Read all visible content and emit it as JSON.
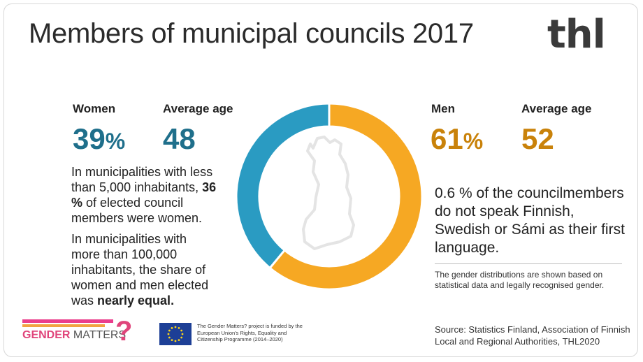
{
  "title": "Members of municipal councils 2017",
  "logo": "thl",
  "women": {
    "label": "Women",
    "value": "39",
    "unit": "%",
    "age_label": "Average age",
    "age": "48"
  },
  "men": {
    "label": "Men",
    "value": "61",
    "unit": "%",
    "age_label": "Average age",
    "age": "52"
  },
  "text": {
    "p1a": "In municipalities with less than 5,000 inhabitants, ",
    "p1b": "36 %",
    "p1c": " of elected council members were women.",
    "p2a": "In municipalities with more than 100,000 inhabitants, the share of women and men elected was ",
    "p2b": "nearly equal.",
    "fact": "0.6 % of the councilmembers do not speak Finnish, Swedish or Sámi as their first language.",
    "note": "The gender distributions are shown based on statistical data and legally recognised gender.",
    "source": "Source:  Statistics Finland, Association of Finnish Local and Regional Authorities, THL2020"
  },
  "footer": {
    "gm_a": "GENDER",
    "gm_b": " MATTERS",
    "gm_q": "?",
    "eu_text": "The Gender Matters? project is funded by the European Union's Rights, Equality and Citizenship Programme (2014–2020)"
  },
  "colors": {
    "women": "#2a9bc2",
    "men": "#f6a823",
    "women_text": "#1f6f8b",
    "men_text": "#c9820a"
  },
  "chart_data": {
    "type": "pie",
    "title": "Members of municipal councils 2017",
    "categories": [
      "Women",
      "Men"
    ],
    "values": [
      39,
      61
    ],
    "unit": "%"
  }
}
